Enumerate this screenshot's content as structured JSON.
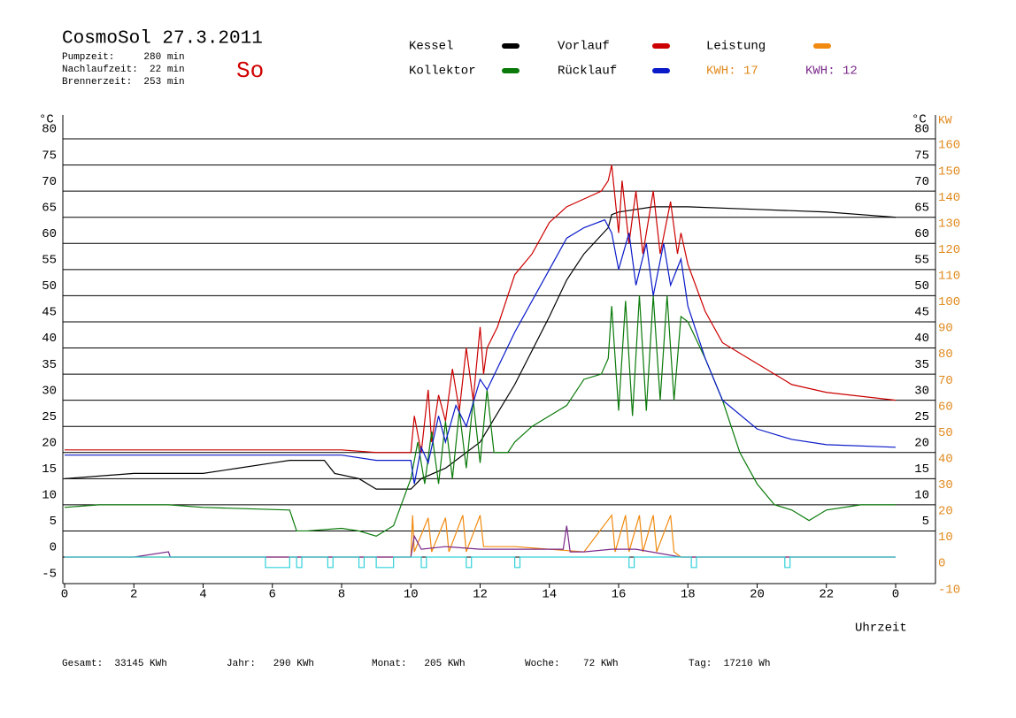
{
  "chart_data": {
    "type": "line",
    "title": "CosmoSol 27.3.2011",
    "day": "So",
    "info": [
      "Pumpzeit:     280 min",
      "Nachlaufzeit:  22 min",
      "Brennerzeit:  253 min"
    ],
    "footer": [
      "Gesamt:  33145 KWh",
      "Jahr:   290 KWh",
      "Monat:   205 KWh",
      "Woche:    72 KWh",
      "Tag:  17210 Wh"
    ],
    "annotations": [
      {
        "text": "KWH: 17",
        "color": "#e08a1e"
      },
      {
        "text": "KWH: 12",
        "color": "#7a2a8a"
      }
    ],
    "xlabel": "Uhrzeit",
    "ylabel": "°C",
    "ylabel_right": "°C",
    "y2label": "KW",
    "xlim": [
      0,
      25.2
    ],
    "xticks": [
      0,
      2,
      4,
      6,
      8,
      10,
      12,
      14,
      16,
      18,
      20,
      22,
      {
        "value": 24,
        "label": "0"
      }
    ],
    "ylim": [
      -5,
      85
    ],
    "yticks": [
      -5,
      0,
      5,
      10,
      15,
      20,
      25,
      30,
      35,
      40,
      45,
      50,
      55,
      60,
      65,
      70,
      75,
      80
    ],
    "yticks_right": [
      5,
      10,
      15,
      20,
      25,
      30,
      35,
      40,
      45,
      50,
      55,
      60,
      65,
      70,
      75,
      80
    ],
    "y2lim": [
      -10,
      170
    ],
    "y2ticks": [
      -10,
      0,
      10,
      20,
      30,
      40,
      50,
      60,
      70,
      80,
      90,
      100,
      110,
      120,
      130,
      140,
      150,
      160
    ],
    "grid": true,
    "series": [
      {
        "name": "Kessel",
        "color": "#000000",
        "x": [
          0,
          2,
          4,
          5,
          6,
          6.5,
          7.5,
          7.8,
          8.5,
          9,
          10,
          10.3,
          11,
          12,
          13,
          14,
          14.5,
          15,
          15.7,
          15.8,
          16,
          17,
          18,
          20,
          22,
          24
        ],
        "values": [
          15,
          16,
          16,
          17,
          18,
          18.5,
          18.5,
          16,
          15,
          13,
          13,
          15,
          17,
          22,
          33,
          46,
          53,
          58,
          63,
          65.5,
          66,
          67,
          67,
          66.5,
          66,
          65
        ]
      },
      {
        "name": "Vorlauf",
        "color": "#cc0000",
        "x": [
          0,
          8,
          9,
          10,
          10.1,
          10.3,
          10.5,
          10.6,
          10.8,
          11,
          11.2,
          11.4,
          11.6,
          11.8,
          12,
          12.1,
          12.2,
          12.5,
          13,
          13.5,
          14,
          14.5,
          15,
          15.5,
          15.7,
          15.8,
          16,
          16.1,
          16.3,
          16.5,
          16.7,
          17,
          17.2,
          17.5,
          17.7,
          17.8,
          18,
          18.5,
          19,
          20,
          21,
          22,
          24
        ],
        "values": [
          20.5,
          20.5,
          20,
          20,
          27,
          20,
          32,
          22,
          31,
          26,
          36,
          28,
          40,
          30,
          44,
          35,
          40,
          44,
          54,
          58,
          64,
          67,
          68.5,
          70,
          72,
          75,
          62,
          72,
          60,
          70,
          58,
          70,
          58,
          68,
          58,
          62,
          56,
          47,
          41,
          37,
          33,
          31.5,
          30
        ]
      },
      {
        "name": "Kollektor",
        "color": "#0a7a0a",
        "x": [
          0,
          1,
          3,
          4,
          6.5,
          6.7,
          7,
          8,
          8.5,
          9,
          9.5,
          10,
          10.2,
          10.4,
          10.6,
          10.8,
          11,
          11.2,
          11.4,
          11.6,
          11.8,
          12,
          12.2,
          12.4,
          12.8,
          13,
          13.5,
          14,
          14.5,
          15,
          15.5,
          15.7,
          15.8,
          16,
          16.2,
          16.4,
          16.6,
          16.8,
          17,
          17.2,
          17.4,
          17.6,
          17.8,
          18,
          18.5,
          19,
          19.5,
          20,
          20.5,
          21,
          21.5,
          22,
          23,
          24
        ],
        "values": [
          9.5,
          10,
          10,
          9.5,
          9,
          5,
          5,
          5.5,
          5,
          4,
          6,
          15,
          22,
          14,
          24,
          14,
          26,
          15,
          28,
          17,
          30,
          18,
          32,
          20,
          20,
          22,
          25,
          27,
          29,
          34,
          35,
          38,
          48,
          28,
          49,
          27,
          50,
          28,
          50,
          30,
          50,
          30,
          46,
          45,
          38,
          30,
          20,
          14,
          10,
          9,
          7,
          9,
          10,
          10
        ]
      },
      {
        "name": "Rücklauf",
        "color": "#0a1ac8",
        "x": [
          0,
          8,
          9,
          10,
          10.1,
          10.3,
          10.5,
          10.8,
          11,
          11.3,
          11.6,
          12,
          12.2,
          13,
          14,
          14.5,
          15,
          15.6,
          15.8,
          16,
          16.3,
          16.5,
          16.8,
          17,
          17.3,
          17.5,
          17.8,
          18,
          18.5,
          19,
          20,
          21,
          22,
          24
        ],
        "values": [
          19.5,
          19.5,
          18.5,
          18.5,
          14,
          21,
          18,
          27,
          22,
          29,
          25,
          34,
          32,
          43,
          55,
          61,
          63,
          64.5,
          62,
          55,
          62,
          52,
          60,
          50,
          60,
          52,
          57,
          48,
          38,
          30,
          24.5,
          22.5,
          21.5,
          21
        ]
      },
      {
        "name": "Leistung",
        "color": "#f08a10",
        "axis": "y2",
        "x": [
          0,
          10,
          10.05,
          10.1,
          10.5,
          10.6,
          11,
          11.1,
          11.5,
          11.6,
          12,
          12.1,
          13,
          14,
          15,
          15.8,
          15.9,
          16.2,
          16.3,
          16.6,
          16.7,
          17,
          17.1,
          17.5,
          17.6,
          17.8,
          24
        ],
        "values": [
          0,
          0,
          16,
          2,
          15,
          2,
          15,
          2,
          16,
          2,
          16,
          4,
          4,
          3,
          2,
          16,
          2,
          16,
          2,
          16,
          2,
          16,
          2,
          16,
          2,
          0,
          0
        ]
      },
      {
        "color": "#7a2a8a",
        "x": [
          0,
          2,
          3,
          3.05,
          10,
          10.1,
          10.3,
          11,
          12,
          13,
          14,
          14.4,
          14.5,
          14.6,
          15,
          15.8,
          16.5,
          17.8,
          24
        ],
        "values": [
          0,
          0,
          1,
          0,
          0,
          4,
          1.5,
          2,
          1.5,
          1.5,
          1.5,
          1.5,
          6,
          1,
          1,
          1.5,
          1.5,
          0,
          0
        ]
      },
      {
        "color": "#30d0d8",
        "x": [
          0,
          5.8,
          5.8,
          6.5,
          6.5,
          6.7,
          6.7,
          6.85,
          6.85,
          7.6,
          7.6,
          7.75,
          7.75,
          8.5,
          8.5,
          8.65,
          8.65,
          9,
          9,
          9.5,
          9.5,
          10.3,
          10.3,
          10.45,
          10.45,
          11.6,
          11.6,
          11.75,
          11.75,
          13,
          13,
          13.15,
          13.15,
          16.3,
          16.3,
          16.45,
          16.45,
          18.1,
          18.1,
          18.25,
          18.25,
          20.8,
          20.8,
          20.95,
          20.95,
          24
        ],
        "values": [
          0,
          0,
          -2,
          -2,
          0,
          0,
          -2,
          -2,
          0,
          0,
          -2,
          -2,
          0,
          0,
          -2,
          -2,
          0,
          0,
          -2,
          -2,
          0,
          0,
          -2,
          -2,
          0,
          0,
          -2,
          -2,
          0,
          0,
          -2,
          -2,
          0,
          0,
          -2,
          -2,
          0,
          0,
          -2,
          -2,
          0,
          0,
          -2,
          -2,
          0,
          0
        ]
      }
    ]
  }
}
